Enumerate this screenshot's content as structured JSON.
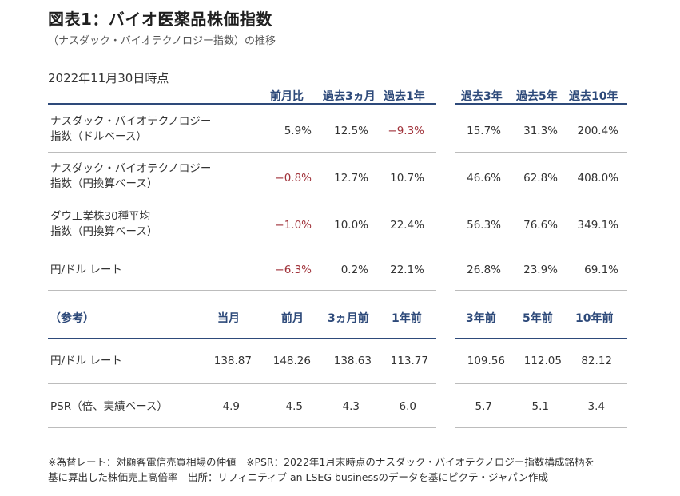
{
  "title": "図表1：バイオ医薬品株価指数",
  "subtitle": "（ナスダック・バイオテクノロジー指数）の推移",
  "as_of": "2022年11月30日時点",
  "table1": {
    "headers": [
      "前月比",
      "過去3ヵ月",
      "過去1年",
      "過去3年",
      "過去5年",
      "過去10年"
    ],
    "rows": [
      {
        "label_line1": "ナスダック・バイオテクノロジー",
        "label_line2": "指数（ドルベース）",
        "values": [
          "5.9%",
          "12.5%",
          "−9.3%",
          "15.7%",
          "31.3%",
          "200.4%"
        ]
      },
      {
        "label_line1": "ナスダック・バイオテクノロジー",
        "label_line2": "指数（円換算ベース）",
        "values": [
          "−0.8%",
          "12.7%",
          "10.7%",
          "46.6%",
          "62.8%",
          "408.0%"
        ]
      },
      {
        "label_line1": "ダウ工業株30種平均",
        "label_line2": "指数（円換算ベース）",
        "values": [
          "−1.0%",
          "10.0%",
          "22.4%",
          "56.3%",
          "76.6%",
          "349.1%"
        ]
      },
      {
        "label_line1": "円/ドル レート",
        "label_line2": "",
        "values": [
          "−6.3%",
          "0.2%",
          "22.1%",
          "26.8%",
          "23.9%",
          "69.1%"
        ]
      }
    ]
  },
  "table2": {
    "label": "（参考）",
    "headers": [
      "当月",
      "前月",
      "3ヵ月前",
      "1年前",
      "3年前",
      "5年前",
      "10年前"
    ],
    "rows": [
      {
        "label": "円/ドル レート",
        "values": [
          "138.87",
          "148.26",
          "138.63",
          "113.77",
          "109.56",
          "112.05",
          "82.12"
        ]
      },
      {
        "label": "PSR（倍、実績ベース）",
        "values": [
          "4.9",
          "4.5",
          "4.3",
          "6.0",
          "5.7",
          "5.1",
          "3.4"
        ]
      }
    ]
  },
  "footnote_line1": "※為替レート：対顧客電信売買相場の仲値　※PSR：2022年1月末時点のナスダック・バイオテクノロジー指数構成銘柄を",
  "footnote_line2": "基に算出した株価売上高倍率　出所：リフィニティブ an LSEG businessのデータを基にピクテ・ジャパン作成",
  "colors": {
    "accent": "#2e4a7a",
    "negative": "#a0323a"
  }
}
